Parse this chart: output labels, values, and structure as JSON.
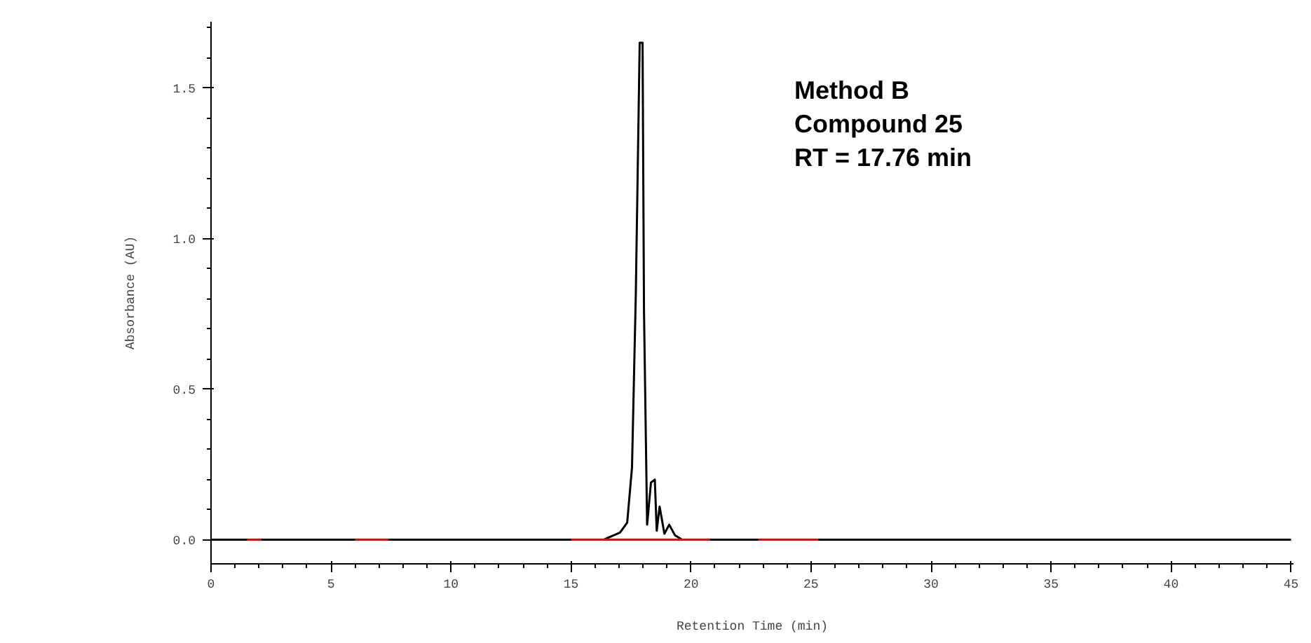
{
  "chart_data": {
    "type": "line",
    "xlabel": "Retention Time (min)",
    "ylabel": "Absorbance (AU)",
    "annotations": [
      "Method B",
      "Compound 25",
      "RT = 17.76 min"
    ],
    "xlim": [
      0,
      45.1
    ],
    "ylim": [
      -0.08,
      1.72
    ],
    "xticks": [
      0,
      5,
      10,
      15,
      20,
      25,
      30,
      35,
      40,
      45
    ],
    "yticks": [
      {
        "value": 0,
        "label": "0.0"
      },
      {
        "value": 0.5,
        "label": "0.5"
      },
      {
        "value": 1,
        "label": "1.0"
      },
      {
        "value": 1.5,
        "label": "1.5"
      }
    ],
    "grid": false,
    "series": [
      {
        "color": "#000000",
        "x": [
          0,
          16.35,
          17.04,
          17.34,
          17.54,
          17.7,
          17.86,
          17.98,
          18.04,
          18.17,
          18.33,
          18.49,
          18.57,
          18.69,
          18.89,
          19.09,
          19.33,
          19.63,
          45
        ],
        "values": [
          0,
          0,
          0.024,
          0.057,
          0.24,
          0.82,
          1.65,
          1.65,
          0.76,
          0.05,
          0.19,
          0.2,
          0.03,
          0.11,
          0.02,
          0.05,
          0.015,
          0,
          0
        ]
      },
      {
        "color": "#ff0000",
        "x": [
          1.5,
          2.1
        ],
        "values": [
          0,
          0
        ]
      },
      {
        "color": "#ff0000",
        "x": [
          6.0,
          7.4
        ],
        "values": [
          0,
          0
        ]
      },
      {
        "color": "#ff0000",
        "x": [
          15.0,
          20.8
        ],
        "values": [
          0,
          0
        ]
      },
      {
        "color": "#ff0000",
        "x": [
          22.8,
          25.3
        ],
        "values": [
          0,
          0
        ]
      }
    ]
  }
}
